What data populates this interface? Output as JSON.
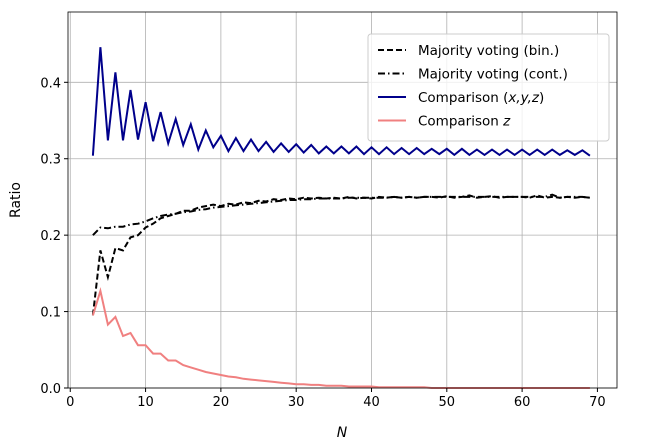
{
  "chart_data": {
    "type": "line",
    "xlabel": "N",
    "ylabel": "Ratio",
    "xlim": [
      -0.3,
      72.6
    ],
    "ylim": [
      0,
      0.492
    ],
    "xticks": [
      0,
      10,
      20,
      30,
      40,
      50,
      60,
      70
    ],
    "yticks": [
      0.0,
      0.1,
      0.2,
      0.3,
      0.4
    ],
    "ytick_labels": [
      "0.0",
      "0.1",
      "0.2",
      "0.3",
      "0.4"
    ],
    "grid": true,
    "legend_placement": "top-right",
    "x_start": 3,
    "series": [
      {
        "name": "Majority voting (bin.)",
        "legend_pre": "Majority voting (bin.)",
        "legend_ital": "",
        "legend_post": "",
        "color": "#000000",
        "dash": "6,3",
        "values": [
          0.095,
          0.18,
          0.145,
          0.183,
          0.18,
          0.197,
          0.2,
          0.21,
          0.215,
          0.222,
          0.225,
          0.228,
          0.232,
          0.232,
          0.236,
          0.238,
          0.24,
          0.238,
          0.241,
          0.24,
          0.243,
          0.242,
          0.245,
          0.244,
          0.247,
          0.246,
          0.248,
          0.247,
          0.249,
          0.248,
          0.249,
          0.248,
          0.249,
          0.248,
          0.25,
          0.248,
          0.249,
          0.248,
          0.25,
          0.249,
          0.25,
          0.249,
          0.25,
          0.249,
          0.25,
          0.25,
          0.249,
          0.251,
          0.249,
          0.25,
          0.252,
          0.249,
          0.25,
          0.251,
          0.249,
          0.25,
          0.25,
          0.25,
          0.249,
          0.252,
          0.249,
          0.25,
          0.249,
          0.25,
          0.249,
          0.25,
          0.249
        ]
      },
      {
        "name": "Majority voting (cont.)",
        "legend_pre": "Majority voting (cont.)",
        "legend_ital": "",
        "legend_post": "",
        "color": "#000000",
        "dash": "7,3,1.5,3",
        "values": [
          0.2,
          0.21,
          0.209,
          0.211,
          0.211,
          0.214,
          0.215,
          0.218,
          0.222,
          0.225,
          0.227,
          0.228,
          0.23,
          0.231,
          0.233,
          0.234,
          0.236,
          0.237,
          0.238,
          0.239,
          0.24,
          0.241,
          0.242,
          0.243,
          0.244,
          0.245,
          0.246,
          0.246,
          0.247,
          0.247,
          0.248,
          0.248,
          0.248,
          0.248,
          0.249,
          0.249,
          0.249,
          0.249,
          0.249,
          0.249,
          0.25,
          0.249,
          0.25,
          0.249,
          0.25,
          0.25,
          0.25,
          0.25,
          0.25,
          0.25,
          0.25,
          0.25,
          0.25,
          0.25,
          0.25,
          0.25,
          0.25,
          0.25,
          0.25,
          0.25,
          0.25,
          0.253,
          0.249,
          0.25,
          0.25,
          0.25,
          0.249
        ]
      },
      {
        "name": "Comparison (x,y,z)",
        "legend_pre": "Comparison (",
        "legend_ital": "x,y,z",
        "legend_post": ")",
        "color": "#00008b",
        "dash": "",
        "values": [
          0.304,
          0.446,
          0.324,
          0.413,
          0.324,
          0.39,
          0.325,
          0.374,
          0.323,
          0.361,
          0.32,
          0.352,
          0.318,
          0.345,
          0.312,
          0.337,
          0.315,
          0.33,
          0.31,
          0.327,
          0.31,
          0.325,
          0.31,
          0.322,
          0.309,
          0.32,
          0.309,
          0.319,
          0.308,
          0.318,
          0.307,
          0.316,
          0.307,
          0.316,
          0.307,
          0.316,
          0.306,
          0.315,
          0.306,
          0.315,
          0.306,
          0.314,
          0.306,
          0.314,
          0.306,
          0.313,
          0.306,
          0.313,
          0.305,
          0.313,
          0.305,
          0.312,
          0.305,
          0.312,
          0.305,
          0.312,
          0.305,
          0.312,
          0.305,
          0.312,
          0.305,
          0.312,
          0.305,
          0.311,
          0.305,
          0.311,
          0.304
        ]
      },
      {
        "name": "Comparison z",
        "legend_pre": "Comparison ",
        "legend_ital": "z",
        "legend_post": "",
        "color": "#f08080",
        "dash": "",
        "values": [
          0.095,
          0.127,
          0.083,
          0.093,
          0.068,
          0.072,
          0.056,
          0.056,
          0.045,
          0.045,
          0.036,
          0.036,
          0.03,
          0.027,
          0.024,
          0.021,
          0.019,
          0.017,
          0.015,
          0.014,
          0.012,
          0.011,
          0.01,
          0.009,
          0.008,
          0.007,
          0.006,
          0.005,
          0.005,
          0.004,
          0.004,
          0.003,
          0.003,
          0.003,
          0.002,
          0.002,
          0.002,
          0.002,
          0.001,
          0.001,
          0.001,
          0.001,
          0.001,
          0.001,
          0.001,
          0.0,
          0.0,
          0.0,
          0.0,
          0.0,
          0.0,
          0.0,
          0.0,
          0.0,
          0.0,
          0.0,
          0.0,
          0.0,
          0.0,
          0.0,
          0.0,
          0.0,
          0.0,
          0.0,
          0.0,
          0.0,
          0.0
        ]
      }
    ]
  }
}
